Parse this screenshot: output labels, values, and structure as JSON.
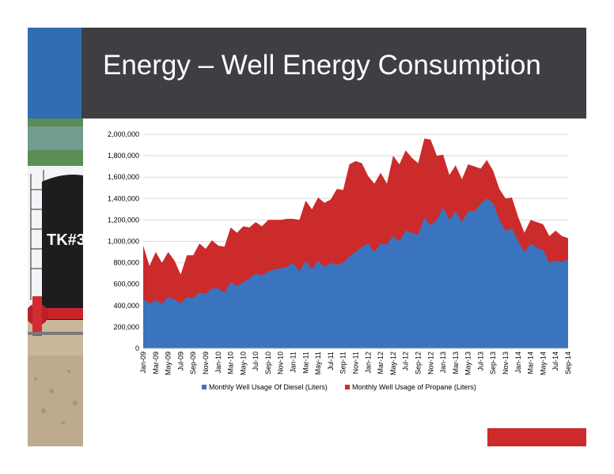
{
  "slide": {
    "title": "Energy – Well Energy Consumption",
    "colors": {
      "title_bar": "#3d3f42",
      "accent_blue": "#2f6db5",
      "accent_red": "#cc2b2b"
    },
    "photo_sign": "TK#3"
  },
  "chart_data": {
    "type": "area",
    "stacked": true,
    "title": "",
    "xlabel": "",
    "ylabel": "",
    "ylim": [
      0,
      2000000
    ],
    "yticks": [
      0,
      200000,
      400000,
      600000,
      800000,
      1000000,
      1200000,
      1400000,
      1600000,
      1800000,
      2000000
    ],
    "ytick_labels": [
      "0",
      "200,000",
      "400,000",
      "600,000",
      "800,000",
      "1,000,000",
      "1,200,000",
      "1,400,000",
      "1,600,000",
      "1,800,000",
      "2,000,000"
    ],
    "grid": true,
    "legend_position": "bottom",
    "x": [
      "Jan-09",
      "Feb-09",
      "Mar-09",
      "Apr-09",
      "May-09",
      "Jun-09",
      "Jul-09",
      "Aug-09",
      "Sep-09",
      "Oct-09",
      "Nov-09",
      "Dec-09",
      "Jan-10",
      "Feb-10",
      "Mar-10",
      "Apr-10",
      "May-10",
      "Jun-10",
      "Jul-10",
      "Aug-10",
      "Sep-10",
      "Oct-10",
      "Nov-10",
      "Dec-10",
      "Jan-11",
      "Feb-11",
      "Mar-11",
      "Apr-11",
      "May-11",
      "Jun-11",
      "Jul-11",
      "Aug-11",
      "Sep-11",
      "Oct-11",
      "Nov-11",
      "Dec-11",
      "Jan-12",
      "Feb-12",
      "Mar-12",
      "Apr-12",
      "May-12",
      "Jun-12",
      "Jul-12",
      "Aug-12",
      "Sep-12",
      "Oct-12",
      "Nov-12",
      "Dec-12",
      "Jan-13",
      "Feb-13",
      "Mar-13",
      "Apr-13",
      "May-13",
      "Jun-13",
      "Jul-13",
      "Aug-13",
      "Sep-13",
      "Oct-13",
      "Nov-13",
      "Dec-13",
      "Jan-14",
      "Feb-14",
      "Mar-14",
      "Apr-14",
      "May-14",
      "Jun-14",
      "Jul-14",
      "Aug-14",
      "Sep-14"
    ],
    "x_tick_labels": [
      "Jan-09",
      "Mar-09",
      "May-09",
      "Jul-09",
      "Sep-09",
      "Nov-09",
      "Jan-10",
      "Mar-10",
      "May-10",
      "Jul-10",
      "Sep-10",
      "Nov-10",
      "Jan-11",
      "Mar-11",
      "May-11",
      "Jul-11",
      "Sep-11",
      "Nov-11",
      "Jan-12",
      "Mar-12",
      "May-12",
      "Jul-12",
      "Sep-12",
      "Nov-12",
      "Jan-13",
      "Mar-13",
      "May-13",
      "Jul-13",
      "Sep-13",
      "Nov-13",
      "Jan-14",
      "Mar-14",
      "May-14",
      "Jul-14",
      "Sep-14"
    ],
    "series": [
      {
        "name": "Monthly Well Usage Of Diesel (Liters)",
        "color": "#3b74be",
        "values": [
          460000,
          420000,
          450000,
          420000,
          480000,
          460000,
          420000,
          480000,
          470000,
          520000,
          510000,
          560000,
          560000,
          520000,
          620000,
          580000,
          620000,
          650000,
          700000,
          680000,
          720000,
          740000,
          750000,
          760000,
          800000,
          720000,
          820000,
          740000,
          820000,
          760000,
          800000,
          780000,
          800000,
          860000,
          900000,
          950000,
          980000,
          900000,
          980000,
          970000,
          1050000,
          1000000,
          1100000,
          1080000,
          1060000,
          1220000,
          1150000,
          1200000,
          1320000,
          1200000,
          1280000,
          1180000,
          1280000,
          1280000,
          1350000,
          1400000,
          1360000,
          1200000,
          1100000,
          1120000,
          1000000,
          900000,
          980000,
          940000,
          920000,
          800000,
          820000,
          810000,
          830000
        ]
      },
      {
        "name": "Monthly Well Usage of Propane (Liters)",
        "color": "#cc2b2b",
        "values": [
          500000,
          350000,
          450000,
          380000,
          420000,
          360000,
          270000,
          390000,
          400000,
          460000,
          420000,
          450000,
          400000,
          430000,
          510000,
          500000,
          520000,
          480000,
          480000,
          460000,
          480000,
          460000,
          450000,
          450000,
          410000,
          480000,
          560000,
          560000,
          590000,
          600000,
          590000,
          710000,
          680000,
          860000,
          850000,
          780000,
          630000,
          640000,
          660000,
          570000,
          750000,
          720000,
          750000,
          700000,
          670000,
          740000,
          800000,
          600000,
          490000,
          420000,
          430000,
          400000,
          440000,
          420000,
          330000,
          360000,
          300000,
          290000,
          300000,
          290000,
          230000,
          180000,
          220000,
          240000,
          240000,
          250000,
          280000,
          240000,
          200000
        ]
      }
    ]
  }
}
